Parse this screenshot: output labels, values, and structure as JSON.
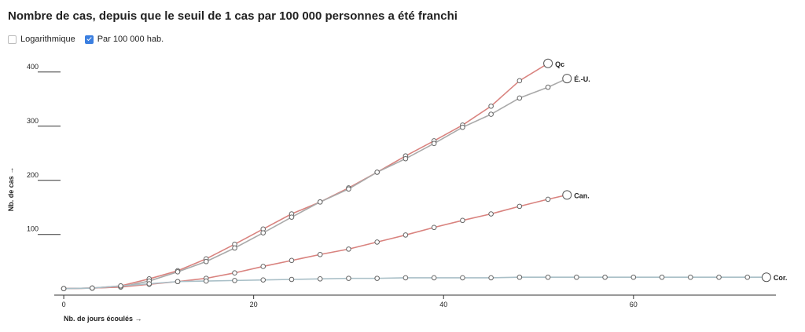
{
  "chart_data": {
    "type": "line",
    "title": "Nombre de cas, depuis que le seuil de 1 cas par 100 000 personnes a été franchi",
    "controls": [
      {
        "label": "Logarithmique",
        "checked": false
      },
      {
        "label": "Par 100 000 hab.",
        "checked": true
      }
    ],
    "xlabel": "Nb. de jours écoulés →",
    "ylabel": "Nb. de cas →",
    "xlim": [
      -1,
      75
    ],
    "ylim": [
      -12,
      420
    ],
    "xticks": [
      0,
      20,
      40,
      60
    ],
    "yticks": [
      100,
      200,
      300,
      400
    ],
    "series": [
      {
        "name": "Qc",
        "color": "#d9837f",
        "x": [
          0,
          3,
          6,
          9,
          12,
          15,
          18,
          21,
          24,
          27,
          30,
          33,
          36,
          39,
          42,
          45,
          48,
          51
        ],
        "values": [
          0,
          1,
          5,
          18,
          33,
          55,
          82,
          110,
          138,
          160,
          186,
          215,
          245,
          273,
          302,
          337,
          384,
          416
        ]
      },
      {
        "name": "É.-U.",
        "color": "#aaaaaa",
        "x": [
          0,
          3,
          6,
          9,
          12,
          15,
          18,
          21,
          24,
          27,
          30,
          33,
          36,
          39,
          42,
          45,
          48,
          51,
          53
        ],
        "values": [
          0,
          1,
          3,
          14,
          31,
          50,
          75,
          103,
          132,
          160,
          184,
          215,
          240,
          268,
          298,
          322,
          352,
          372,
          388
        ]
      },
      {
        "name": "Can.",
        "color": "#d9837f",
        "x": [
          0,
          3,
          6,
          9,
          12,
          15,
          18,
          21,
          24,
          27,
          30,
          33,
          36,
          39,
          42,
          45,
          48,
          51,
          53
        ],
        "values": [
          0,
          1,
          3,
          8,
          13,
          19,
          29,
          41,
          52,
          63,
          73,
          86,
          99,
          113,
          126,
          138,
          152,
          165,
          173
        ]
      },
      {
        "name": "Cor.",
        "color": "#a9bfc7",
        "x": [
          0,
          3,
          6,
          9,
          12,
          15,
          18,
          21,
          24,
          27,
          30,
          33,
          36,
          39,
          42,
          45,
          48,
          51,
          54,
          57,
          60,
          63,
          66,
          69,
          72,
          74
        ],
        "values": [
          0,
          1,
          5,
          9,
          13,
          14,
          15,
          16,
          17,
          18,
          19,
          19,
          20,
          20,
          20,
          20,
          21,
          21,
          21,
          21,
          21,
          21,
          21,
          21,
          21,
          21
        ]
      }
    ]
  }
}
